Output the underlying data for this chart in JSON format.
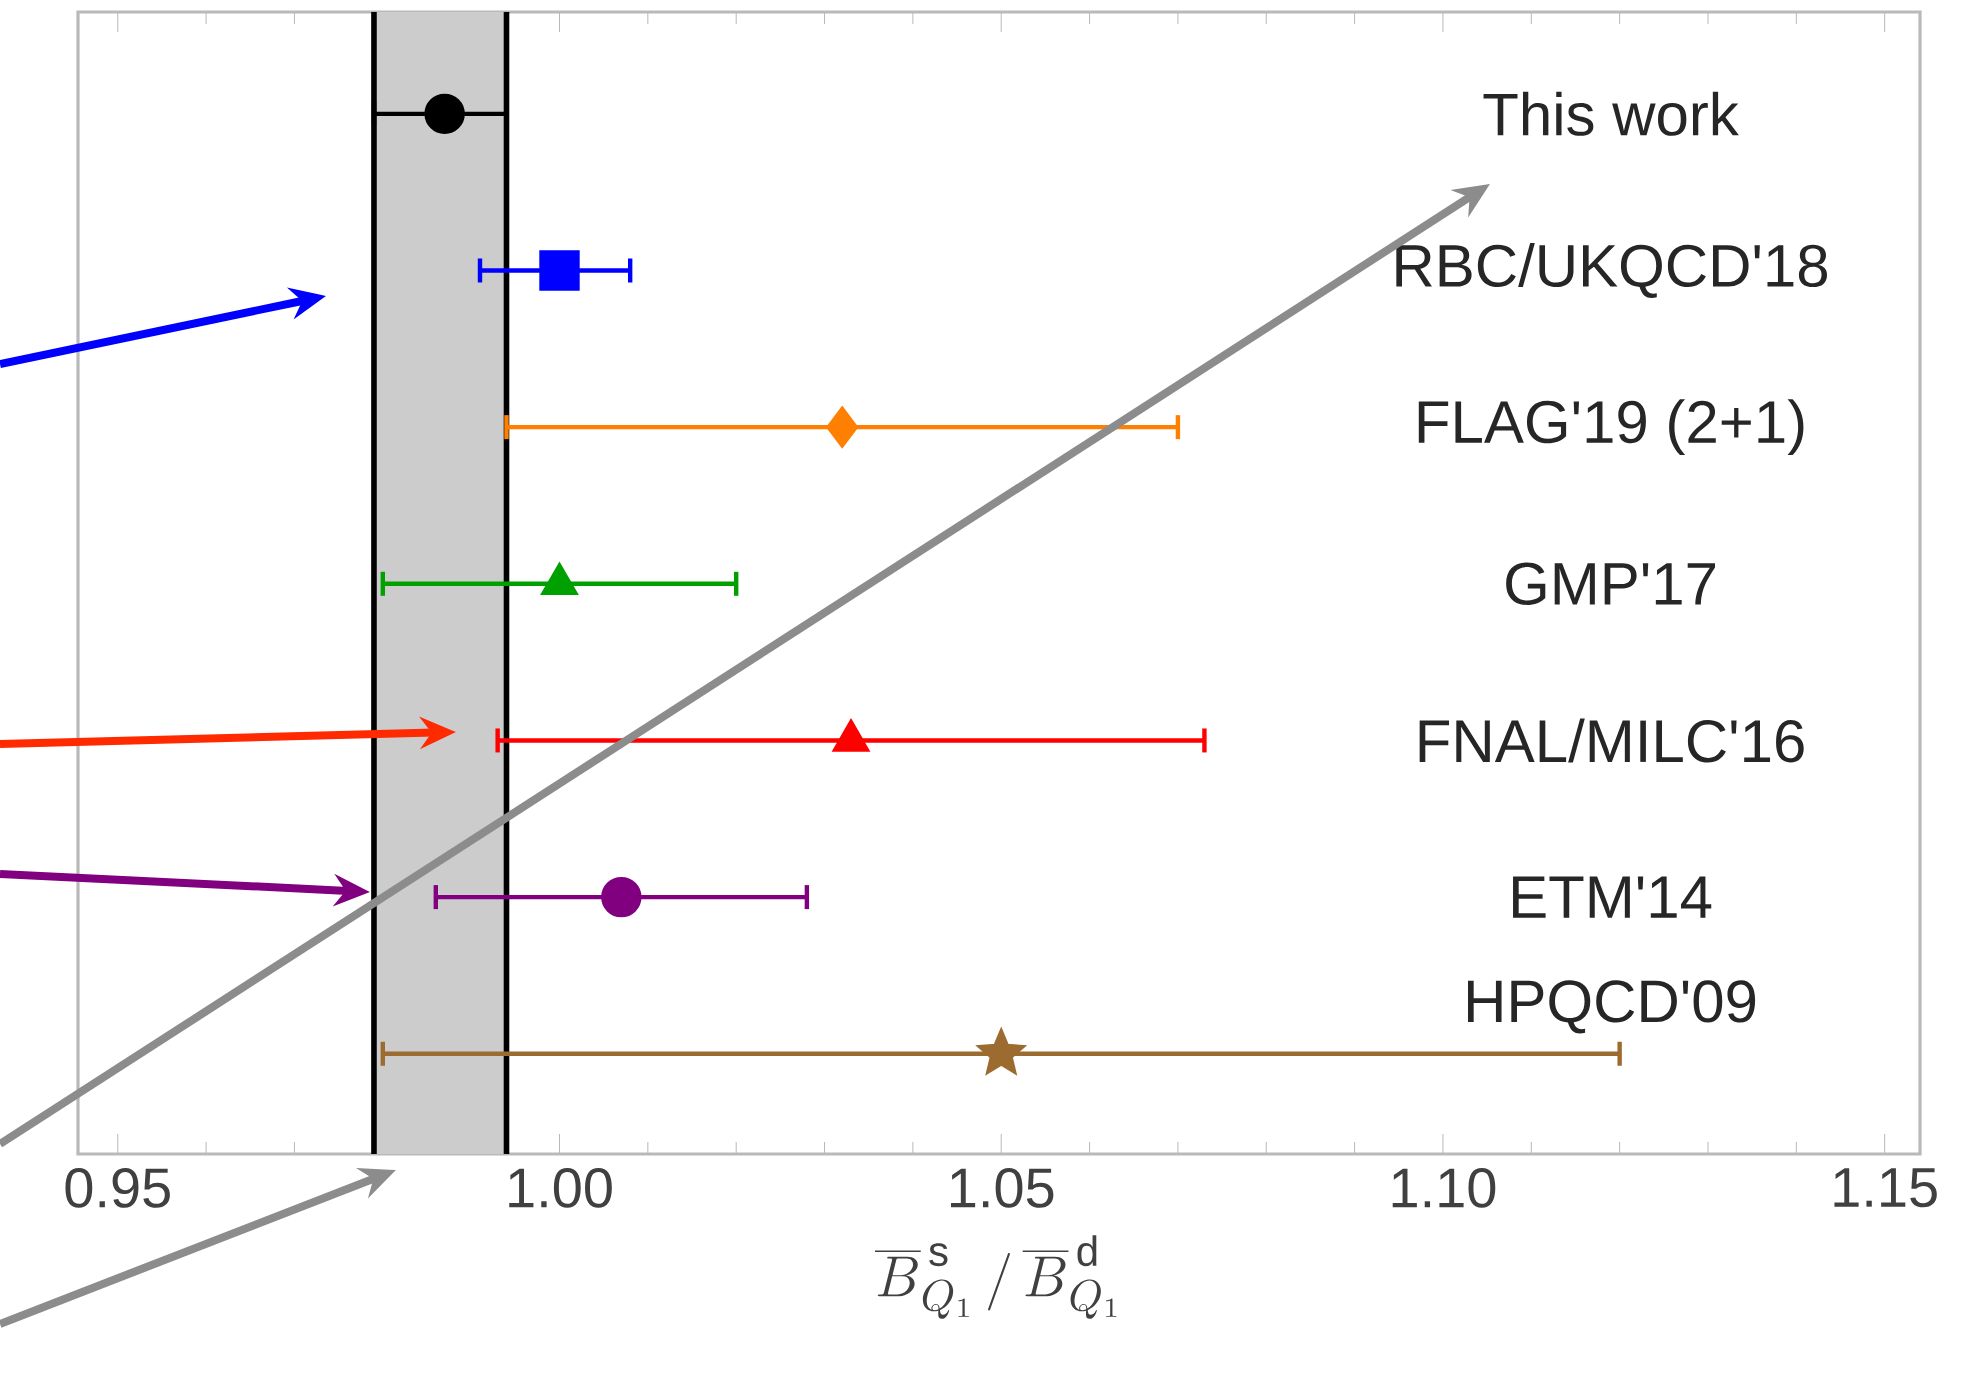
{
  "chart_data": {
    "type": "scatter",
    "orientation": "horizontal",
    "xlabel": "\\overline{B}^{\\,\\mathrm{s}}_{Q_1}\\,/\\,\\overline{B}^{\\,\\mathrm{d}}_{Q_1}",
    "categories": [
      null,
      null,
      null,
      null,
      null,
      null,
      null
    ],
    "xlim": [
      0.9455,
      1.154
    ],
    "xticks": [
      0.95,
      {
        "value": 1.0,
        "label": "1.00"
      },
      1.05,
      {
        "value": 1.1,
        "label": "1.10"
      },
      1.15,
      {
        "value": 0.96,
        "label": null
      },
      {
        "value": 0.97,
        "label": null
      },
      {
        "value": 0.98,
        "label": null
      },
      {
        "value": 0.99,
        "label": null
      },
      {
        "value": 1.01,
        "label": null
      },
      {
        "value": 1.02,
        "label": null
      },
      {
        "value": 1.03,
        "label": null
      },
      {
        "value": 1.04,
        "label": null
      },
      {
        "value": 1.06,
        "label": null
      },
      {
        "value": 1.07,
        "label": null
      },
      {
        "value": 1.08,
        "label": null
      },
      {
        "value": 1.09,
        "label": null
      },
      {
        "value": 1.11,
        "label": null
      },
      {
        "value": 1.12,
        "label": null
      },
      {
        "value": 1.13,
        "label": null
      },
      {
        "value": 1.14,
        "label": null
      }
    ],
    "tick_labels": "x",
    "grid": false,
    "legend": false,
    "bands": [
      {
        "axis": "x",
        "from": 0.979,
        "to": 0.994,
        "color": "#cccccc"
      }
    ],
    "ref_lines": [
      {
        "axis": "x",
        "value": 0.979,
        "color": "#000000"
      },
      {
        "axis": "x",
        "value": 0.994,
        "color": "#000000"
      }
    ],
    "series": [
      {
        "name": "This work",
        "color": "#000000",
        "marker": "circle",
        "values": [
          0.987,
          null,
          null,
          null,
          null,
          null,
          null
        ],
        "errors": [
          [
            0.979,
            0.994
          ],
          null,
          null,
          null,
          null,
          null,
          null
        ]
      },
      {
        "name": "RBC/UKQCD'18",
        "color": "#0000ff",
        "marker": "square",
        "values": [
          null,
          1.0,
          null,
          null,
          null,
          null,
          null
        ],
        "errors": [
          null,
          [
            0.991,
            1.008
          ],
          null,
          null,
          null,
          null,
          null
        ]
      },
      {
        "name": "FLAG'19 (2+1)",
        "color": "#ff8000",
        "marker": "diamond",
        "values": [
          null,
          null,
          1.032,
          null,
          null,
          null,
          null
        ],
        "errors": [
          null,
          null,
          [
            0.994,
            1.07
          ],
          null,
          null,
          null,
          null
        ]
      },
      {
        "name": "GMP'17",
        "color": "#00a000",
        "marker": "triangle",
        "values": [
          null,
          null,
          null,
          1.0,
          null,
          null,
          null
        ],
        "errors": [
          null,
          null,
          null,
          [
            0.98,
            1.02
          ],
          null,
          null,
          null
        ]
      },
      {
        "name": "FNAL/MILC'16",
        "color": "#ff0000",
        "marker": "triangle",
        "values": [
          null,
          null,
          null,
          null,
          1.033,
          null,
          null
        ],
        "errors": [
          null,
          null,
          null,
          null,
          [
            0.993,
            1.073
          ],
          null,
          null
        ]
      },
      {
        "name": "ETM'14",
        "color": "#800080",
        "marker": "circle",
        "values": [
          null,
          null,
          null,
          null,
          null,
          1.007,
          null
        ],
        "errors": [
          null,
          null,
          null,
          null,
          null,
          [
            0.986,
            1.028
          ],
          null
        ]
      },
      {
        "name": "HPQCD'09",
        "color": "#9c6b30",
        "marker": "star",
        "values": [
          null,
          null,
          null,
          null,
          null,
          null,
          1.05
        ],
        "errors": [
          null,
          null,
          null,
          null,
          null,
          null,
          [
            0.98,
            1.12
          ]
        ]
      }
    ]
  }
}
